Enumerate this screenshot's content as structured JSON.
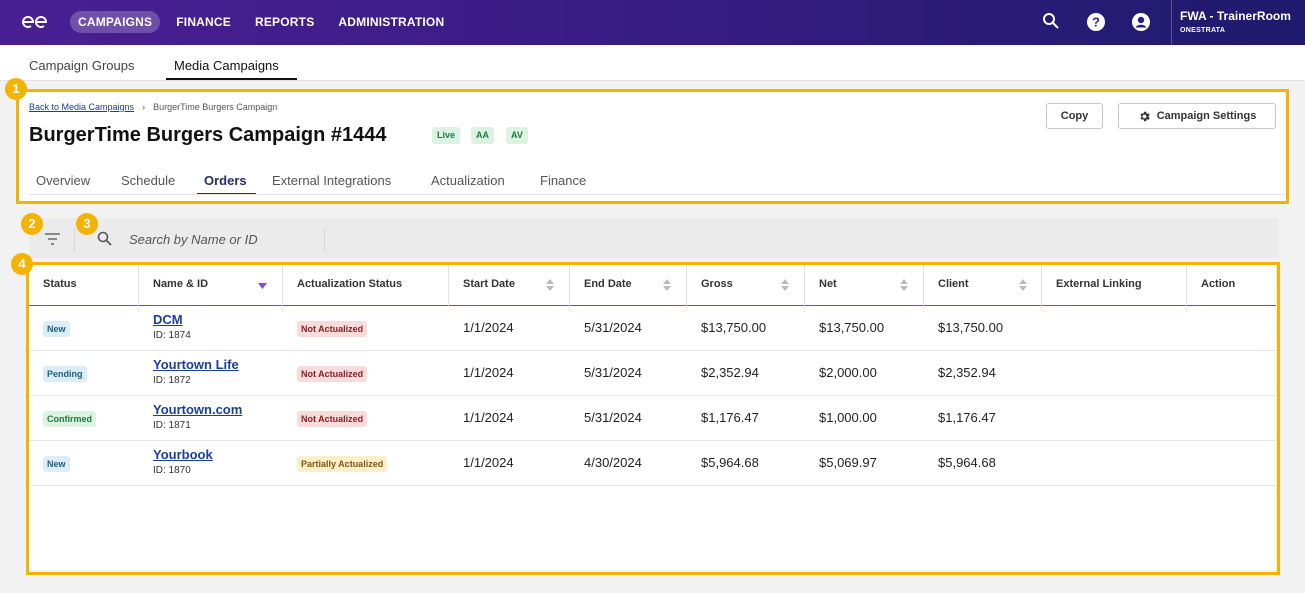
{
  "topnav": {
    "items": [
      "CAMPAIGNS",
      "FINANCE",
      "REPORTS",
      "ADMINISTRATION"
    ],
    "user_name": "FWA - TrainerRoom",
    "user_org": "ONESTRATA"
  },
  "subtabs": [
    "Campaign Groups",
    "Media Campaigns"
  ],
  "header": {
    "breadcrumb_back": "Back to Media Campaigns",
    "breadcrumb_sep": "›",
    "breadcrumb_current": "BurgerTime Burgers Campaign",
    "title": "BurgerTime Burgers Campaign #1444",
    "badges": [
      "Live",
      "AA",
      "AV"
    ],
    "copy_label": "Copy",
    "settings_label": "Campaign Settings",
    "tabs": [
      "Overview",
      "Schedule",
      "Orders",
      "External Integrations",
      "Actualization",
      "Finance"
    ],
    "active_tab": "Orders"
  },
  "toolbar": {
    "search_placeholder": "Search by Name or ID"
  },
  "table": {
    "columns": [
      "Status",
      "Name & ID",
      "Actualization Status",
      "Start Date",
      "End Date",
      "Gross",
      "Net",
      "Client",
      "External Linking",
      "Action"
    ],
    "rows": [
      {
        "status": "New",
        "name": "DCM",
        "id": "ID: 1874",
        "act": "Not Actualized",
        "start": "1/1/2024",
        "end": "5/31/2024",
        "gross": "$13,750.00",
        "net": "$13,750.00",
        "client": "$13,750.00"
      },
      {
        "status": "Pending",
        "name": "Yourtown Life",
        "id": "ID: 1872",
        "act": "Not Actualized",
        "start": "1/1/2024",
        "end": "5/31/2024",
        "gross": "$2,352.94",
        "net": "$2,000.00",
        "client": "$2,352.94"
      },
      {
        "status": "Confirmed",
        "name": "Yourtown.com",
        "id": "ID: 1871",
        "act": "Not Actualized",
        "start": "1/1/2024",
        "end": "5/31/2024",
        "gross": "$1,176.47",
        "net": "$1,000.00",
        "client": "$1,176.47"
      },
      {
        "status": "New",
        "name": "Yourbook",
        "id": "ID: 1870",
        "act": "Partially Actualized",
        "start": "1/1/2024",
        "end": "4/30/2024",
        "gross": "$5,964.68",
        "net": "$5,069.97",
        "client": "$5,964.68"
      }
    ]
  },
  "markers": [
    "1",
    "2",
    "3",
    "4"
  ],
  "colors": {
    "nav_start": "#4a1f93",
    "nav_end": "#1f1a6d",
    "highlight": "#f5b301",
    "link": "#1b3d9c"
  }
}
